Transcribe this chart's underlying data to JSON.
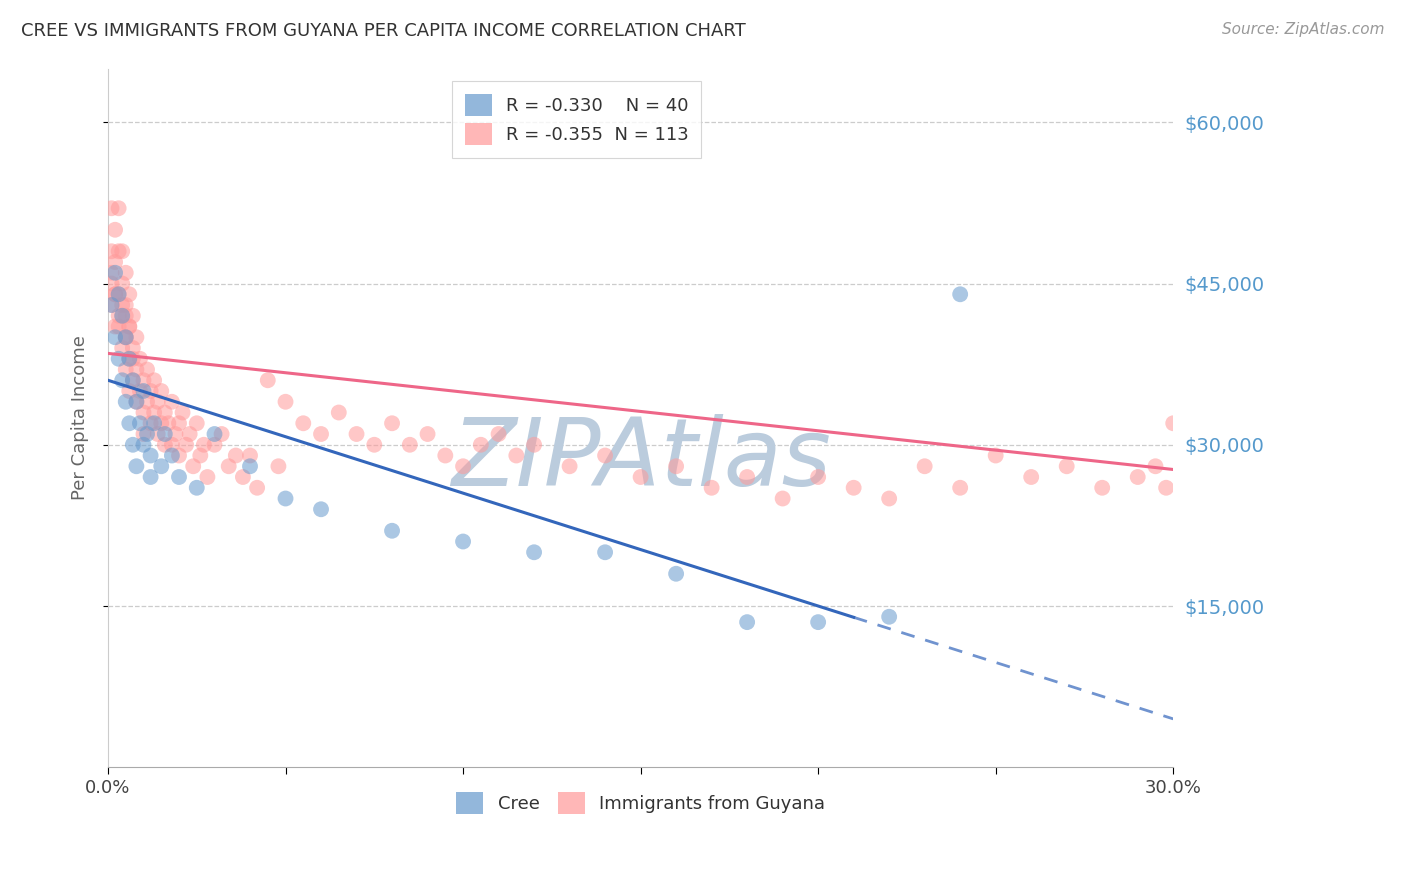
{
  "title": "CREE VS IMMIGRANTS FROM GUYANA PER CAPITA INCOME CORRELATION CHART",
  "source": "Source: ZipAtlas.com",
  "ylabel": "Per Capita Income",
  "ytick_labels": [
    "$60,000",
    "$45,000",
    "$30,000",
    "$15,000"
  ],
  "ytick_values": [
    60000,
    45000,
    30000,
    15000
  ],
  "ymin": 0,
  "ymax": 65000,
  "xmin": 0.0,
  "xmax": 0.3,
  "R_cree": -0.33,
  "N_cree": 40,
  "R_guyana": -0.355,
  "N_guyana": 113,
  "cree_color": "#6699CC",
  "guyana_color": "#FF9999",
  "cree_line_color": "#3366BB",
  "guyana_line_color": "#EE6688",
  "cree_line_solid_end": 0.21,
  "watermark": "ZIPAtlas",
  "watermark_color": "#BBCCDD",
  "background_color": "#FFFFFF",
  "cree_line_intercept": 36000,
  "cree_line_slope": -105000,
  "guyana_line_intercept": 38500,
  "guyana_line_slope": -36000,
  "cree_x": [
    0.001,
    0.002,
    0.002,
    0.003,
    0.003,
    0.004,
    0.004,
    0.005,
    0.005,
    0.006,
    0.006,
    0.007,
    0.007,
    0.008,
    0.008,
    0.009,
    0.01,
    0.01,
    0.011,
    0.012,
    0.012,
    0.013,
    0.015,
    0.016,
    0.018,
    0.02,
    0.025,
    0.03,
    0.04,
    0.05,
    0.06,
    0.08,
    0.1,
    0.12,
    0.14,
    0.16,
    0.18,
    0.2,
    0.22,
    0.24
  ],
  "cree_y": [
    43000,
    46000,
    40000,
    44000,
    38000,
    42000,
    36000,
    40000,
    34000,
    38000,
    32000,
    36000,
    30000,
    34000,
    28000,
    32000,
    35000,
    30000,
    31000,
    29000,
    27000,
    32000,
    28000,
    31000,
    29000,
    27000,
    26000,
    31000,
    28000,
    25000,
    24000,
    22000,
    21000,
    20000,
    20000,
    18000,
    13500,
    13500,
    14000,
    44000
  ],
  "guyana_x": [
    0.001,
    0.001,
    0.001,
    0.002,
    0.002,
    0.002,
    0.003,
    0.003,
    0.003,
    0.003,
    0.004,
    0.004,
    0.004,
    0.004,
    0.005,
    0.005,
    0.005,
    0.005,
    0.006,
    0.006,
    0.006,
    0.006,
    0.007,
    0.007,
    0.007,
    0.008,
    0.008,
    0.008,
    0.009,
    0.009,
    0.01,
    0.01,
    0.01,
    0.011,
    0.011,
    0.012,
    0.012,
    0.013,
    0.013,
    0.014,
    0.014,
    0.015,
    0.015,
    0.016,
    0.016,
    0.017,
    0.018,
    0.018,
    0.019,
    0.02,
    0.02,
    0.021,
    0.022,
    0.023,
    0.024,
    0.025,
    0.026,
    0.027,
    0.028,
    0.03,
    0.032,
    0.034,
    0.036,
    0.038,
    0.04,
    0.042,
    0.045,
    0.048,
    0.05,
    0.055,
    0.06,
    0.065,
    0.07,
    0.075,
    0.08,
    0.085,
    0.09,
    0.095,
    0.1,
    0.105,
    0.11,
    0.115,
    0.12,
    0.13,
    0.14,
    0.15,
    0.16,
    0.17,
    0.18,
    0.19,
    0.2,
    0.21,
    0.22,
    0.23,
    0.24,
    0.25,
    0.26,
    0.27,
    0.28,
    0.29,
    0.295,
    0.298,
    0.3,
    0.001,
    0.001,
    0.002,
    0.002,
    0.003,
    0.004,
    0.005,
    0.005,
    0.006,
    0.007
  ],
  "guyana_y": [
    52000,
    48000,
    45000,
    50000,
    47000,
    44000,
    52000,
    48000,
    44000,
    41000,
    48000,
    45000,
    42000,
    39000,
    46000,
    43000,
    40000,
    37000,
    44000,
    41000,
    38000,
    35000,
    42000,
    39000,
    36000,
    40000,
    37000,
    34000,
    38000,
    35000,
    36000,
    33000,
    31000,
    37000,
    34000,
    35000,
    32000,
    36000,
    33000,
    34000,
    31000,
    35000,
    32000,
    33000,
    30000,
    32000,
    30000,
    34000,
    31000,
    32000,
    29000,
    33000,
    30000,
    31000,
    28000,
    32000,
    29000,
    30000,
    27000,
    30000,
    31000,
    28000,
    29000,
    27000,
    29000,
    26000,
    36000,
    28000,
    34000,
    32000,
    31000,
    33000,
    31000,
    30000,
    32000,
    30000,
    31000,
    29000,
    28000,
    30000,
    31000,
    29000,
    30000,
    28000,
    29000,
    27000,
    28000,
    26000,
    27000,
    25000,
    27000,
    26000,
    25000,
    28000,
    26000,
    29000,
    27000,
    28000,
    26000,
    27000,
    28000,
    26000,
    32000,
    46000,
    43000,
    44000,
    41000,
    42000,
    43000,
    42000,
    40000,
    41000,
    38000
  ]
}
